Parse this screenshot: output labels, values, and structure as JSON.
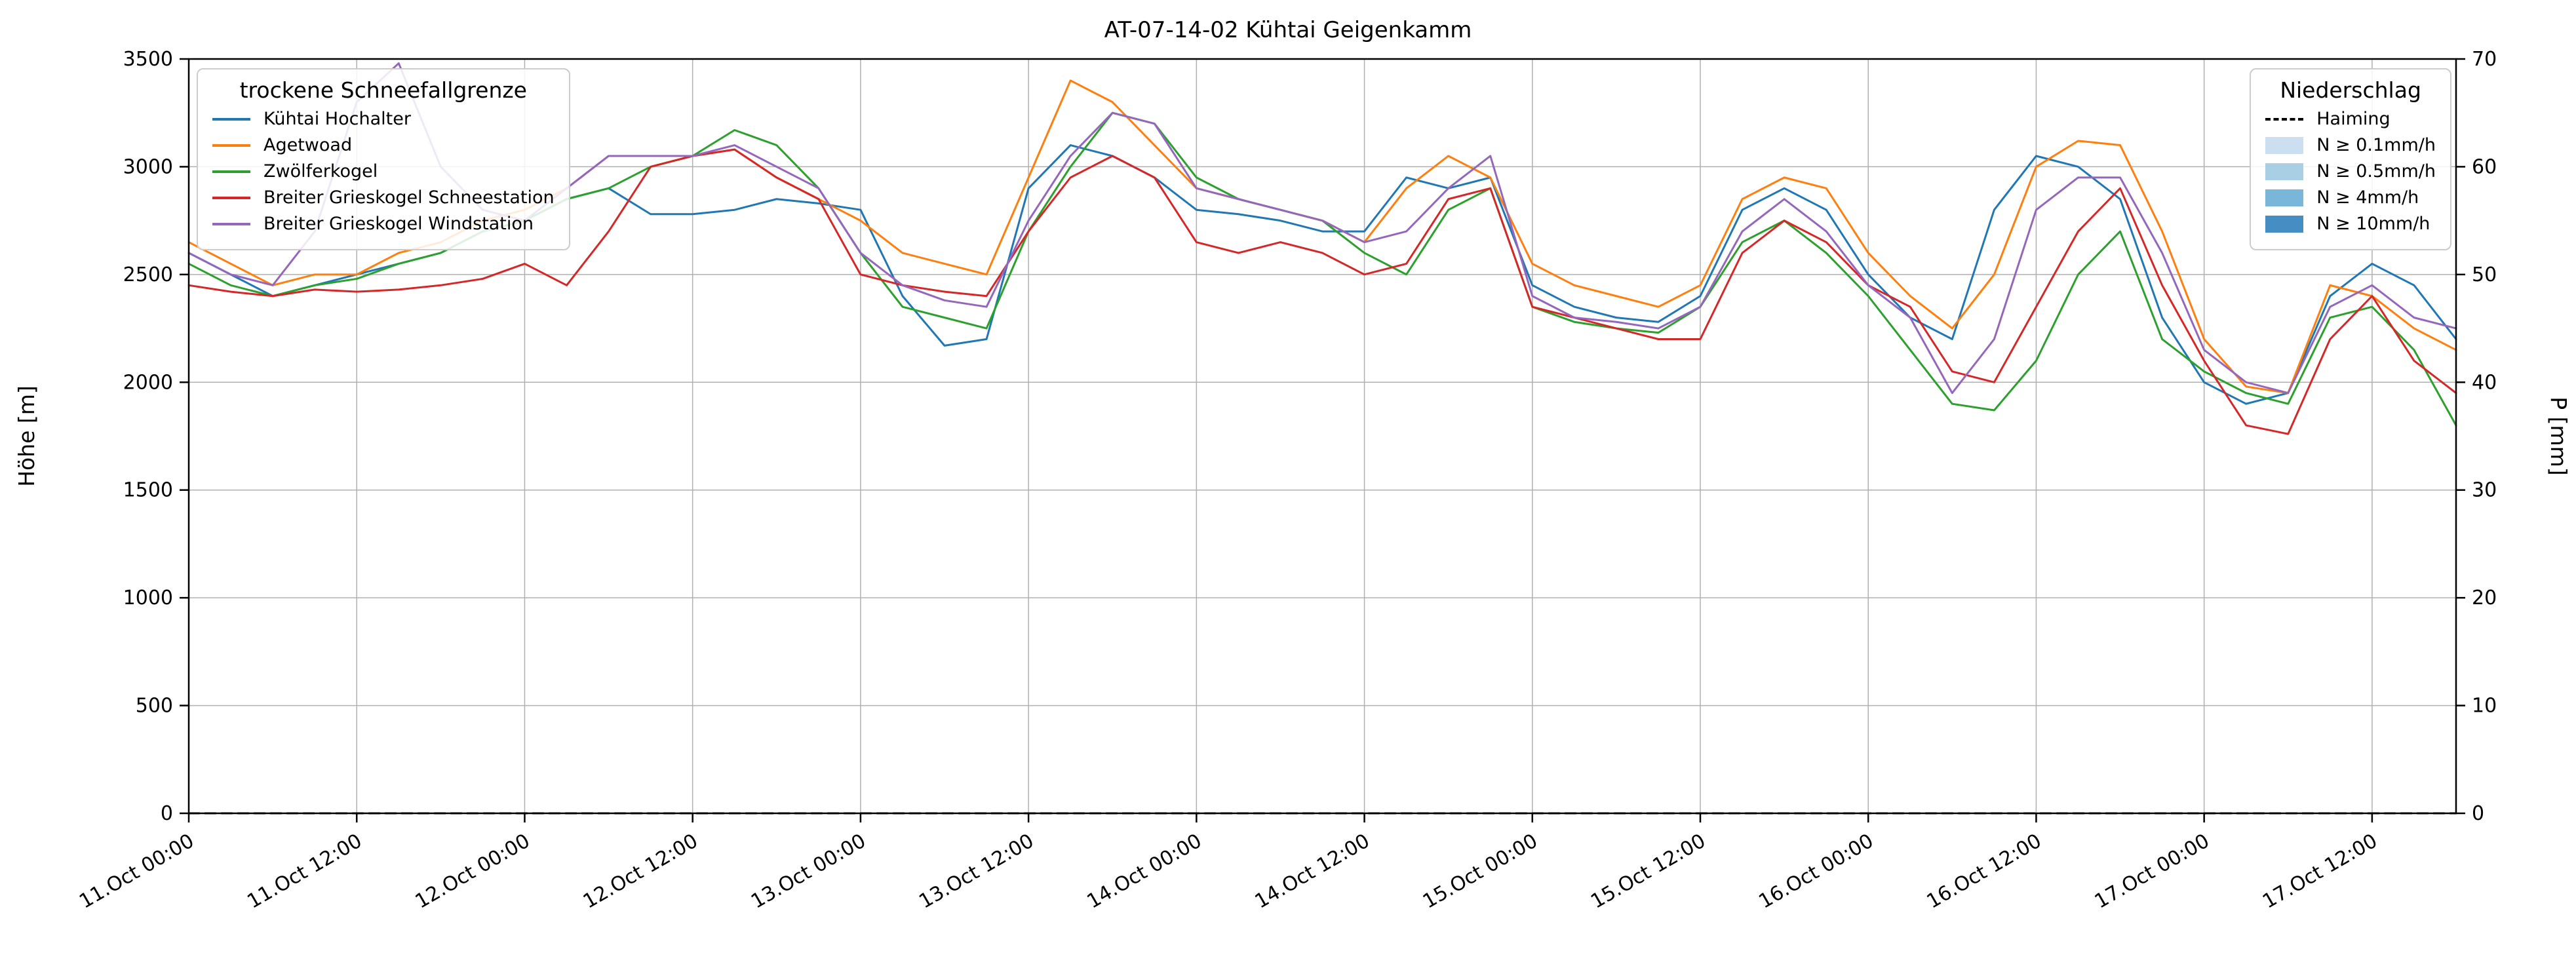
{
  "figure": {
    "title": "AT-07-14-02 Kühtai Geigenkamm",
    "ylabel_left": "Höhe [m]",
    "ylabel_right": "P [mm]"
  },
  "legend_snowline": {
    "title": "trockene Schneefallgrenze",
    "items": [
      {
        "label": "Kühtai Hochalter",
        "color": "#1f77b4"
      },
      {
        "label": "Agetwoad",
        "color": "#ff7f0e"
      },
      {
        "label": "Zwölferkogel",
        "color": "#2ca02c"
      },
      {
        "label": "Breiter Grieskogel Schneestation",
        "color": "#d62728"
      },
      {
        "label": "Breiter Grieskogel Windstation",
        "color": "#9467bd"
      }
    ]
  },
  "legend_precip": {
    "title": "Niederschlag",
    "line_items": [
      {
        "label": "Haiming",
        "color": "#000000",
        "style": "dashed"
      }
    ],
    "band_items": [
      {
        "label": "N ≥ 0.1mm/h",
        "color": "#c6dbef"
      },
      {
        "label": "N ≥ 0.5mm/h",
        "color": "#9ecae1"
      },
      {
        "label": "N ≥ 4mm/h",
        "color": "#6baed6"
      },
      {
        "label": "N ≥ 10mm/h",
        "color": "#3182bd"
      }
    ]
  },
  "chart_data": {
    "type": "line",
    "title": "AT-07-14-02 Kühtai Geigenkamm",
    "xlabel": "",
    "ylabel_left": "Höhe [m]",
    "ylabel_right": "P [mm]",
    "x_unit": "hours since 11.Oct 00:00",
    "x_step_hours": 3,
    "x_range_hours": [
      0,
      162
    ],
    "x_tick_hours": [
      0,
      12,
      24,
      36,
      48,
      60,
      72,
      84,
      96,
      108,
      120,
      132,
      144,
      156
    ],
    "x_tick_labels": [
      "11.Oct 00:00",
      "11.Oct 12:00",
      "12.Oct 00:00",
      "12.Oct 12:00",
      "13.Oct 00:00",
      "13.Oct 12:00",
      "14.Oct 00:00",
      "14.Oct 12:00",
      "15.Oct 00:00",
      "15.Oct 12:00",
      "16.Oct 00:00",
      "16.Oct 12:00",
      "17.Oct 00:00",
      "17.Oct 12:00"
    ],
    "ylim_left": [
      0,
      3500
    ],
    "yticks_left": [
      0,
      500,
      1000,
      1500,
      2000,
      2500,
      3000,
      3500
    ],
    "ylim_right": [
      0,
      70
    ],
    "yticks_right": [
      0,
      10,
      20,
      30,
      40,
      50,
      60,
      70
    ],
    "grid": true,
    "legend_positions": {
      "snowline": "upper left",
      "precip": "upper right"
    },
    "series": [
      {
        "name": "Kühtai Hochalter",
        "slug": "kuehtai-hochalter",
        "color": "#1f77b4",
        "axis": "left",
        "values": [
          2600,
          2500,
          2400,
          2450,
          2500,
          2550,
          2600,
          2700,
          2750,
          2850,
          2900,
          2780,
          2780,
          2800,
          2850,
          2830,
          2800,
          2400,
          2170,
          2200,
          2900,
          3100,
          3050,
          2950,
          2800,
          2780,
          2750,
          2700,
          2700,
          2950,
          2900,
          2950,
          2450,
          2350,
          2300,
          2280,
          2400,
          2800,
          2900,
          2800,
          2500,
          2300,
          2200,
          2800,
          3050,
          3000,
          2850,
          2300,
          2000,
          1900,
          1950,
          2400,
          2550,
          2450,
          2200
        ]
      },
      {
        "name": "Agetwoad",
        "slug": "agetwoad",
        "color": "#ff7f0e",
        "axis": "left",
        "values": [
          2650,
          2550,
          2450,
          2500,
          2500,
          2600,
          2650,
          2750,
          2800,
          2900,
          3050,
          3050,
          3050,
          3080,
          2950,
          2850,
          2750,
          2600,
          2550,
          2500,
          2950,
          3400,
          3300,
          3100,
          2900,
          2850,
          2800,
          2750,
          2650,
          2900,
          3050,
          2950,
          2550,
          2450,
          2400,
          2350,
          2450,
          2850,
          2950,
          2900,
          2600,
          2400,
          2250,
          2500,
          3000,
          3120,
          3100,
          2700,
          2200,
          1980,
          1950,
          2450,
          2400,
          2250,
          2150
        ]
      },
      {
        "name": "Zwölferkogel",
        "slug": "zwoelferkogel",
        "color": "#2ca02c",
        "axis": "left",
        "values": [
          2550,
          2450,
          2400,
          2450,
          2480,
          2550,
          2600,
          2700,
          2750,
          2850,
          2900,
          3000,
          3050,
          3170,
          3100,
          2900,
          2600,
          2350,
          2300,
          2250,
          2700,
          3000,
          3250,
          3200,
          2950,
          2850,
          2800,
          2750,
          2600,
          2500,
          2800,
          2900,
          2350,
          2280,
          2250,
          2230,
          2350,
          2650,
          2750,
          2600,
          2400,
          2150,
          1900,
          1870,
          2100,
          2500,
          2700,
          2200,
          2050,
          1950,
          1900,
          2300,
          2350,
          2150,
          1800
        ]
      },
      {
        "name": "Breiter Grieskogel Schneestation",
        "slug": "breiter-grieskogel-schneestation",
        "color": "#d62728",
        "axis": "left",
        "values": [
          2450,
          2420,
          2400,
          2430,
          2420,
          2430,
          2450,
          2480,
          2550,
          2450,
          2700,
          3000,
          3050,
          3080,
          2950,
          2850,
          2500,
          2450,
          2420,
          2400,
          2700,
          2950,
          3050,
          2950,
          2650,
          2600,
          2650,
          2600,
          2500,
          2550,
          2850,
          2900,
          2350,
          2300,
          2250,
          2200,
          2200,
          2600,
          2750,
          2650,
          2450,
          2350,
          2050,
          2000,
          2350,
          2700,
          2900,
          2450,
          2100,
          1800,
          1760,
          2200,
          2400,
          2100,
          1950
        ]
      },
      {
        "name": "Breiter Grieskogel Windstation",
        "slug": "breiter-grieskogel-windstation",
        "color": "#9467bd",
        "axis": "left",
        "values": [
          2600,
          2500,
          2450,
          2700,
          3300,
          3480,
          3000,
          2800,
          2750,
          2900,
          3050,
          3050,
          3050,
          3100,
          3000,
          2900,
          2600,
          2450,
          2380,
          2350,
          2750,
          3050,
          3250,
          3200,
          2900,
          2850,
          2800,
          2750,
          2650,
          2700,
          2900,
          3050,
          2400,
          2300,
          2280,
          2250,
          2350,
          2700,
          2850,
          2700,
          2450,
          2300,
          1950,
          2200,
          2800,
          2950,
          2950,
          2600,
          2150,
          2000,
          1950,
          2350,
          2450,
          2300,
          2250
        ]
      },
      {
        "name": "Haiming",
        "slug": "haiming",
        "color": "#000000",
        "axis": "right",
        "dashed": true,
        "values": [
          0,
          0,
          0,
          0,
          0,
          0,
          0,
          0,
          0,
          0,
          0,
          0,
          0,
          0,
          0,
          0,
          0,
          0,
          0,
          0,
          0,
          0,
          0,
          0,
          0,
          0,
          0,
          0,
          0,
          0,
          0,
          0,
          0,
          0,
          0,
          0,
          0,
          0,
          0,
          0,
          0,
          0,
          0,
          0,
          0,
          0,
          0,
          0,
          0,
          0,
          0,
          0,
          0,
          0,
          0
        ]
      }
    ]
  }
}
